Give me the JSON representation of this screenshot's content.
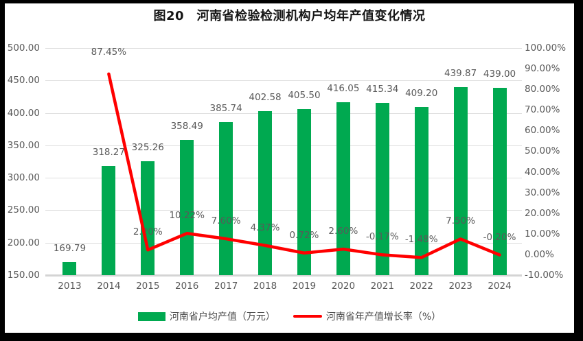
{
  "frame": {
    "border_color": "#000000",
    "background": "#ffffff"
  },
  "chart_data": {
    "type": "combo-bar-line",
    "title": "图20　河南省检验检测机构户均年产值变化情况",
    "categories": [
      "2013",
      "2014",
      "2015",
      "2016",
      "2017",
      "2018",
      "2019",
      "2020",
      "2021",
      "2022",
      "2023",
      "2024"
    ],
    "series": [
      {
        "name": "河南省户均产值（万元）",
        "type": "bar",
        "axis": "left",
        "color": "#00A950",
        "values": [
          169.79,
          318.27,
          325.26,
          358.49,
          385.74,
          402.58,
          405.5,
          416.05,
          415.34,
          409.2,
          439.87,
          439.0
        ],
        "labels": [
          "169.79",
          "318.27",
          "325.26",
          "358.49",
          "385.74",
          "402.58",
          "405.50",
          "416.05",
          "415.34",
          "409.20",
          "439.87",
          "439.00"
        ]
      },
      {
        "name": "河南省年产值增长率（%）",
        "type": "line",
        "axis": "right",
        "color": "#FF0000",
        "values": [
          null,
          87.45,
          2.2,
          10.22,
          7.6,
          4.37,
          0.72,
          2.6,
          -0.17,
          -1.48,
          7.5,
          -0.2
        ],
        "labels": [
          "",
          "87.45%",
          "2.20%",
          "10.22%",
          "7.60%",
          "4.37%",
          "0.72%",
          "2.60%",
          "-0.17%",
          "-1.48%",
          "7.50%",
          "-0.20%"
        ]
      }
    ],
    "left_axis": {
      "min": 150,
      "max": 500,
      "step": 50,
      "tick_labels": [
        "500.00",
        "450.00",
        "400.00",
        "350.00",
        "300.00",
        "250.00",
        "200.00",
        "150.00"
      ]
    },
    "right_axis": {
      "min": -10,
      "max": 100,
      "step": 10,
      "tick_labels": [
        "100.00%",
        "90.00%",
        "80.00%",
        "70.00%",
        "60.00%",
        "50.00%",
        "40.00%",
        "30.00%",
        "20.00%",
        "10.00%",
        "0.00%",
        "-10.00%"
      ]
    },
    "grid": true,
    "legend_position": "bottom",
    "gridline_color": "#dedede",
    "label_color": "#595959"
  }
}
